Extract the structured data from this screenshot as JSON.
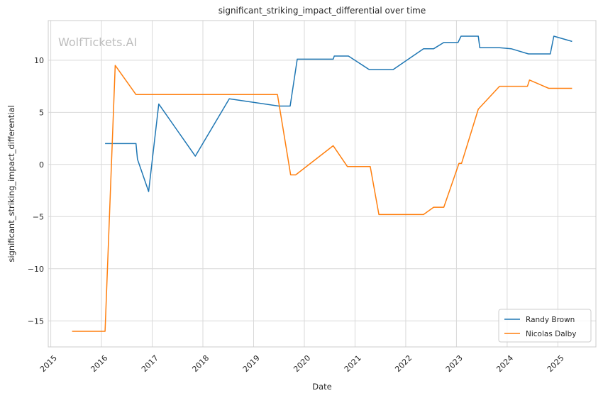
{
  "chart_data": {
    "type": "line",
    "title": "significant_striking_impact_differential over time",
    "xlabel": "Date",
    "ylabel": "significant_striking_impact_differential",
    "watermark": "WolfTickets.AI",
    "xlim": [
      2014.95,
      2025.75
    ],
    "ylim": [
      -17.5,
      13.8
    ],
    "x_ticks": [
      2015,
      2016,
      2017,
      2018,
      2019,
      2020,
      2021,
      2022,
      2023,
      2024,
      2025
    ],
    "x_tick_labels": [
      "2015",
      "2016",
      "2017",
      "2018",
      "2019",
      "2020",
      "2021",
      "2022",
      "2023",
      "2024",
      "2025"
    ],
    "y_ticks": [
      -15,
      -10,
      -5,
      0,
      5,
      10
    ],
    "y_tick_labels": [
      "−15",
      "−10",
      "−5",
      "0",
      "5",
      "10"
    ],
    "grid": true,
    "legend_position": "bottom-right",
    "series": [
      {
        "name": "Randy Brown",
        "color": "#1f77b4",
        "x": [
          2016.07,
          2016.68,
          2016.71,
          2016.93,
          2017.13,
          2017.85,
          2018.52,
          2019.5,
          2019.72,
          2019.86,
          2020.57,
          2020.59,
          2020.87,
          2021.28,
          2021.75,
          2022.35,
          2022.55,
          2022.75,
          2023.03,
          2023.09,
          2023.43,
          2023.46,
          2023.85,
          2024.08,
          2024.42,
          2024.85,
          2024.92,
          2025.28
        ],
        "y": [
          2.0,
          2.0,
          0.5,
          -2.6,
          5.8,
          0.8,
          6.3,
          5.6,
          5.6,
          10.1,
          10.1,
          10.4,
          10.4,
          9.1,
          9.1,
          11.1,
          11.1,
          11.7,
          11.7,
          12.3,
          12.3,
          11.2,
          11.2,
          11.1,
          10.6,
          10.6,
          12.3,
          11.8
        ]
      },
      {
        "name": "Nicolas Dalby",
        "color": "#ff7f0e",
        "x": [
          2015.42,
          2016.07,
          2016.27,
          2016.68,
          2019.47,
          2019.73,
          2019.83,
          2020.57,
          2020.85,
          2021.3,
          2021.47,
          2022.35,
          2022.55,
          2022.75,
          2023.05,
          2023.1,
          2023.43,
          2023.85,
          2024.4,
          2024.44,
          2024.82,
          2025.28
        ],
        "y": [
          -16.0,
          -16.0,
          9.5,
          6.7,
          6.7,
          -1.0,
          -1.0,
          1.8,
          -0.2,
          -0.2,
          -4.8,
          -4.8,
          -4.1,
          -4.1,
          0.1,
          0.1,
          5.3,
          7.5,
          7.5,
          8.1,
          7.3,
          7.3
        ]
      }
    ]
  }
}
